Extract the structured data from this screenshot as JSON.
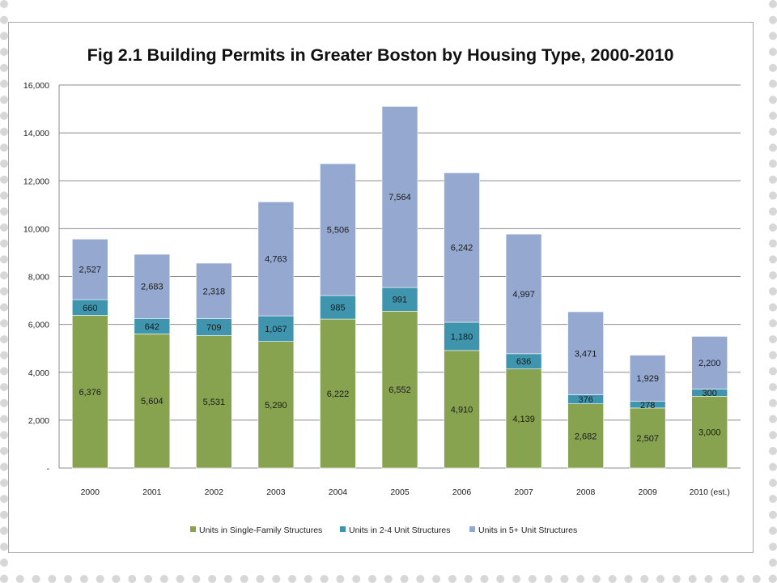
{
  "chart_data": {
    "type": "bar",
    "stacked": true,
    "title": "Fig 2.1 Building Permits in Greater Boston by Housing Type, 2000-2010",
    "categories": [
      "2000",
      "2001",
      "2002",
      "2003",
      "2004",
      "2005",
      "2006",
      "2007",
      "2008",
      "2009",
      "2010 (est.)"
    ],
    "series": [
      {
        "name": "Units in Single-Family Structures",
        "color": "#87a350",
        "values": [
          6376,
          5604,
          5531,
          5290,
          6222,
          6552,
          4910,
          4139,
          2682,
          2507,
          3000
        ],
        "labels": [
          "6,376",
          "5,604",
          "5,531",
          "5,290",
          "6,222",
          "6,552",
          "4,910",
          "4,139",
          "2,682",
          "2,507",
          "3,000"
        ]
      },
      {
        "name": "Units in 2-4 Unit Structures",
        "color": "#3f95ad",
        "values": [
          660,
          642,
          709,
          1067,
          985,
          991,
          1180,
          636,
          376,
          278,
          300
        ],
        "labels": [
          "660",
          "642",
          "709",
          "1,067",
          "985",
          "991",
          "1,180",
          "636",
          "376",
          "278",
          "300"
        ]
      },
      {
        "name": "Units in 5+ Unit Structures",
        "color": "#95a9d0",
        "values": [
          2527,
          2683,
          2318,
          4763,
          5506,
          7564,
          6242,
          4997,
          3471,
          1929,
          2200
        ],
        "labels": [
          "2,527",
          "2,683",
          "2,318",
          "4,763",
          "5,506",
          "7,564",
          "6,242",
          "4,997",
          "3,471",
          "1,929",
          "2,200"
        ]
      }
    ],
    "ylim": [
      0,
      16000
    ],
    "yticks": [
      0,
      2000,
      4000,
      6000,
      8000,
      10000,
      12000,
      14000,
      16000
    ],
    "ytick_labels": [
      "-",
      "2,000",
      "4,000",
      "6,000",
      "8,000",
      "10,000",
      "12,000",
      "14,000",
      "16,000"
    ],
    "grid": true,
    "legend_position": "bottom"
  }
}
